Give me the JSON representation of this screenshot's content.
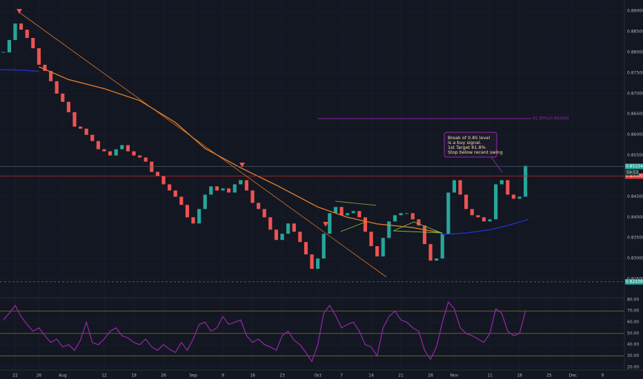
{
  "chart_data": [
    {
      "type": "candlestick",
      "x": [
        -2,
        -1,
        0,
        1,
        2,
        3,
        4,
        5,
        6,
        7,
        8,
        9,
        10,
        11,
        12,
        13,
        14,
        15,
        16,
        17,
        18,
        19,
        20,
        21,
        22,
        23,
        24,
        25,
        26,
        27,
        28,
        29,
        30,
        31,
        32,
        33,
        34,
        35,
        36,
        37,
        38,
        39,
        40,
        41,
        42,
        43,
        44,
        45,
        46,
        47,
        48,
        49,
        50,
        51,
        52,
        53,
        54,
        55,
        56,
        57,
        58,
        59,
        60,
        61,
        62,
        63,
        64,
        65,
        66,
        67,
        68,
        69,
        70,
        71,
        72,
        73,
        74,
        75,
        76,
        77,
        78,
        79,
        80,
        81,
        82,
        83,
        84,
        85,
        86
      ],
      "close": [
        0.88,
        0.883,
        0.887,
        0.8855,
        0.8835,
        0.881,
        0.877,
        0.8755,
        0.873,
        0.87,
        0.868,
        0.8655,
        0.862,
        0.8615,
        0.86,
        0.8585,
        0.8565,
        0.856,
        0.855,
        0.8565,
        0.8575,
        0.856,
        0.855,
        0.8545,
        0.8535,
        0.851,
        0.85,
        0.848,
        0.8465,
        0.845,
        0.843,
        0.84,
        0.8385,
        0.842,
        0.8455,
        0.8475,
        0.8465,
        0.847,
        0.846,
        0.848,
        0.849,
        0.8465,
        0.8435,
        0.842,
        0.84,
        0.837,
        0.8345,
        0.836,
        0.8385,
        0.8365,
        0.834,
        0.831,
        0.8275,
        0.83,
        0.836,
        0.841,
        0.8425,
        0.8405,
        0.841,
        0.8415,
        0.84,
        0.8365,
        0.833,
        0.8305,
        0.835,
        0.839,
        0.8405,
        0.841,
        0.841,
        0.8395,
        0.838,
        0.8335,
        0.8295,
        0.83,
        0.836,
        0.846,
        0.849,
        0.8455,
        0.842,
        0.8405,
        0.84,
        0.839,
        0.8395,
        0.848,
        0.849,
        0.8455,
        0.8445,
        0.845,
        0.8525
      ],
      "up_color": "#26a69a",
      "down_color": "#ef5350",
      "xlim": [
        -2.56,
        102.67
      ],
      "ylim": [
        0.8205,
        0.8927
      ],
      "xticks": [
        {
          "value": 0,
          "label": "22"
        },
        {
          "value": 4,
          "label": "26"
        },
        {
          "value": 8,
          "label": "Aug"
        },
        {
          "value": 15,
          "label": "12"
        },
        {
          "value": 20,
          "label": "19"
        },
        {
          "value": 25,
          "label": "26"
        },
        {
          "value": 30,
          "label": "Sep"
        },
        {
          "value": 35,
          "label": "9"
        },
        {
          "value": 40,
          "label": "16"
        },
        {
          "value": 45,
          "label": "23"
        },
        {
          "value": 51,
          "label": "Oct"
        },
        {
          "value": 55,
          "label": "7"
        },
        {
          "value": 60,
          "label": "14"
        },
        {
          "value": 65,
          "label": "21"
        },
        {
          "value": 70,
          "label": "28"
        },
        {
          "value": 74,
          "label": "Nov"
        },
        {
          "value": 80,
          "label": "11"
        },
        {
          "value": 85,
          "label": "18"
        },
        {
          "value": 90,
          "label": "25"
        },
        {
          "value": 94,
          "label": "Dec"
        },
        {
          "value": 99,
          "label": "9"
        }
      ],
      "yticks": [
        {
          "value": 0.89,
          "label": "0.89000"
        },
        {
          "value": 0.885,
          "label": "0.88500"
        },
        {
          "value": 0.88,
          "label": "0.88000"
        },
        {
          "value": 0.875,
          "label": "0.87500"
        },
        {
          "value": 0.87,
          "label": "0.87000"
        },
        {
          "value": 0.865,
          "label": "0.86500"
        },
        {
          "value": 0.86,
          "label": "0.86000"
        },
        {
          "value": 0.855,
          "label": "0.85500"
        },
        {
          "value": 0.85,
          "label": "0.85000"
        },
        {
          "value": 0.845,
          "label": "0.84500"
        },
        {
          "value": 0.84,
          "label": "0.84000"
        },
        {
          "value": 0.835,
          "label": "0.83500"
        },
        {
          "value": 0.83,
          "label": "0.83000"
        },
        {
          "value": 0.825,
          "label": "0.82500"
        }
      ],
      "overlays": [
        {
          "color": "#e07b2a",
          "x": [
            4,
            9,
            15,
            21,
            27,
            32,
            38,
            44,
            51,
            56,
            61,
            67,
            72
          ],
          "values": [
            0.8765,
            0.8734,
            0.8712,
            0.8683,
            0.863,
            0.8567,
            0.852,
            0.8478,
            0.8425,
            0.84,
            0.8384,
            0.8375,
            0.8362
          ]
        },
        {
          "color": "#2431c8",
          "x": [
            -2.5,
            1,
            4
          ],
          "values": [
            0.8758,
            0.8757,
            0.8754
          ]
        },
        {
          "color": "#2431c8",
          "x": [
            72,
            76,
            80,
            83,
            86.5
          ],
          "values": [
            0.8358,
            0.8362,
            0.837,
            0.838,
            0.8395
          ]
        }
      ],
      "price_labels": [
        {
          "value": 0.85234,
          "label": "0.85234",
          "color": "#26a69a",
          "line": "#4a5a66",
          "dashed": false
        },
        {
          "value": 0.85,
          "label": "0.85000",
          "color": "#e53935",
          "line": "#c62828",
          "dashed": false
        },
        {
          "value": 0.82436,
          "label": "0.82436",
          "color": "#26a69a",
          "line": "#2e9e4e",
          "dashed": true
        }
      ],
      "countdown": "59:53",
      "fib": {
        "value": 0.86394,
        "label": "61.80%(0.86394)",
        "color": "#8e24aa",
        "x": [
          51,
          87
        ]
      },
      "annotation": [
        "Break of 0.85 level",
        "is a buy signal.",
        "1st Target 61.8%",
        "Stop below recent swing"
      ]
    },
    {
      "type": "rsi",
      "color": "#9c27b0",
      "values": [
        62,
        68,
        75,
        65,
        58,
        52,
        55,
        48,
        42,
        45,
        38,
        40,
        35,
        44,
        60,
        42,
        40,
        45,
        52,
        55,
        48,
        46,
        42,
        40,
        45,
        38,
        35,
        40,
        36,
        33,
        42,
        35,
        45,
        58,
        60,
        52,
        55,
        65,
        58,
        60,
        62,
        48,
        42,
        45,
        40,
        38,
        35,
        48,
        52,
        44,
        40,
        33,
        25,
        40,
        68,
        75,
        66,
        55,
        58,
        60,
        52,
        40,
        38,
        30,
        55,
        65,
        70,
        62,
        60,
        55,
        52,
        35,
        27,
        38,
        60,
        78,
        72,
        55,
        50,
        48,
        45,
        42,
        50,
        72,
        68,
        52,
        48,
        50,
        70
      ],
      "ylim": [
        20.5,
        81.8
      ],
      "yticks": [
        {
          "value": 80,
          "label": "80.00"
        },
        {
          "value": 70,
          "label": "70.00"
        },
        {
          "value": 60,
          "label": "60.00"
        },
        {
          "value": 50,
          "label": "50.00"
        },
        {
          "value": 40,
          "label": "40.00"
        },
        {
          "value": 30,
          "label": "30.00"
        },
        {
          "value": 20,
          "label": "20.00"
        }
      ],
      "levels": [
        70,
        50,
        30
      ],
      "level_color": "#8a7a2e"
    }
  ]
}
